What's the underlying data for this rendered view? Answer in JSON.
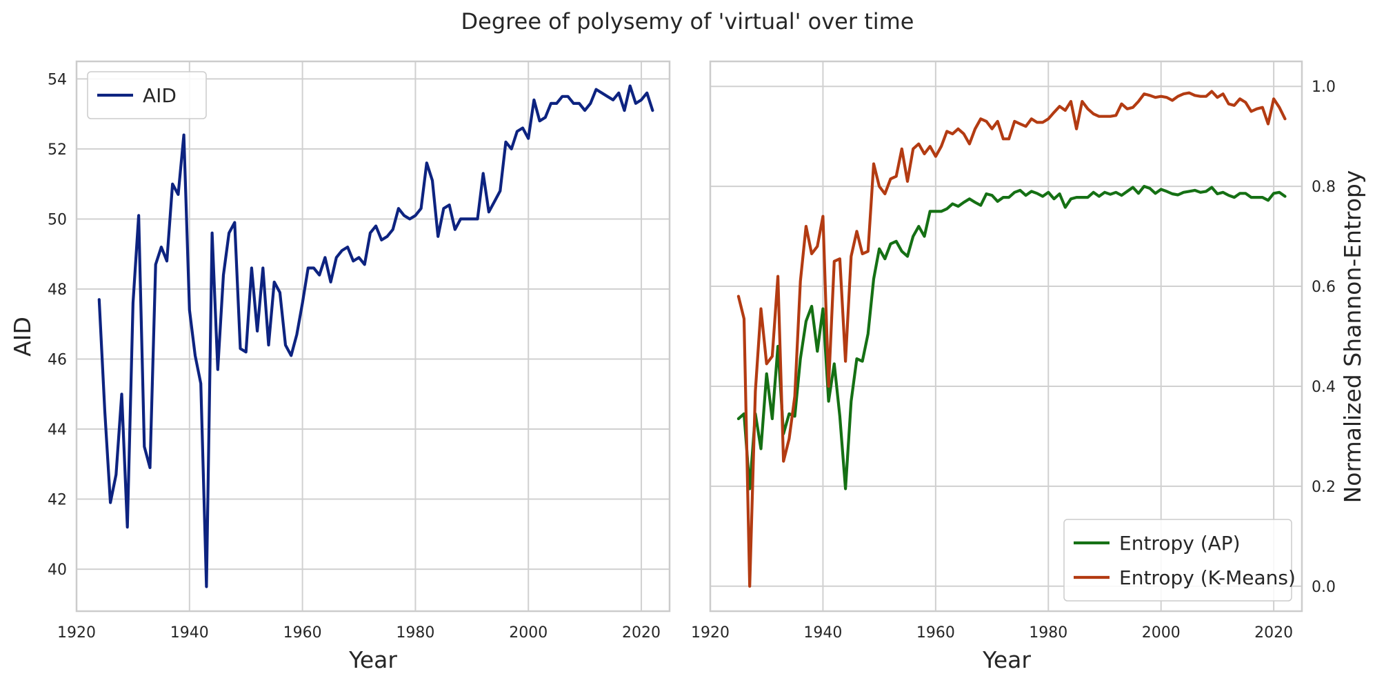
{
  "figure": {
    "title": "Degree of polysemy of 'virtual' over time"
  },
  "chart_data": [
    {
      "type": "line",
      "xlabel": "Year",
      "ylabel": "AID",
      "xlim": [
        1920,
        2025
      ],
      "ylim": [
        38.8,
        54.5
      ],
      "xticks": [
        1920,
        1940,
        1960,
        1980,
        2000,
        2020
      ],
      "yticks": [
        40,
        42,
        44,
        46,
        48,
        50,
        52,
        54
      ],
      "grid": true,
      "legend": "upper left",
      "series": [
        {
          "name": "AID",
          "color": "#0d2380",
          "x": [
            1924,
            1925,
            1926,
            1927,
            1928,
            1929,
            1930,
            1931,
            1932,
            1933,
            1934,
            1935,
            1936,
            1937,
            1938,
            1939,
            1940,
            1941,
            1942,
            1943,
            1944,
            1945,
            1946,
            1947,
            1948,
            1949,
            1950,
            1951,
            1952,
            1953,
            1954,
            1955,
            1956,
            1957,
            1958,
            1959,
            1960,
            1961,
            1962,
            1963,
            1964,
            1965,
            1966,
            1967,
            1968,
            1969,
            1970,
            1971,
            1972,
            1973,
            1974,
            1975,
            1976,
            1977,
            1978,
            1979,
            1980,
            1981,
            1982,
            1983,
            1984,
            1985,
            1986,
            1987,
            1988,
            1989,
            1990,
            1991,
            1992,
            1993,
            1994,
            1995,
            1996,
            1997,
            1998,
            1999,
            2000,
            2001,
            2002,
            2003,
            2004,
            2005,
            2006,
            2007,
            2008,
            2009,
            2010,
            2011,
            2012,
            2013,
            2014,
            2015,
            2016,
            2017,
            2018,
            2019,
            2020,
            2021,
            2022
          ],
          "y": [
            47.7,
            44.5,
            41.9,
            42.7,
            45.0,
            41.2,
            47.6,
            50.1,
            43.5,
            42.9,
            48.7,
            49.2,
            48.8,
            51.0,
            50.7,
            52.4,
            47.4,
            46.1,
            45.3,
            39.5,
            49.6,
            45.7,
            48.4,
            49.6,
            49.9,
            46.3,
            46.2,
            48.6,
            46.8,
            48.6,
            46.4,
            48.2,
            47.9,
            46.4,
            46.1,
            46.7,
            47.6,
            48.6,
            48.6,
            48.4,
            48.9,
            48.2,
            48.9,
            49.1,
            49.2,
            48.8,
            48.9,
            48.7,
            49.6,
            49.8,
            49.4,
            49.5,
            49.7,
            50.3,
            50.1,
            50.0,
            50.1,
            50.3,
            51.6,
            51.1,
            49.5,
            50.3,
            50.4,
            49.7,
            50.0,
            50.0,
            50.0,
            50.0,
            51.3,
            50.2,
            50.5,
            50.8,
            52.2,
            52.0,
            52.5,
            52.6,
            52.3,
            53.4,
            52.8,
            52.9,
            53.3,
            53.3,
            53.5,
            53.5,
            53.3,
            53.3,
            53.1,
            53.3,
            53.7,
            53.6,
            53.5,
            53.4,
            53.6,
            53.1,
            53.8,
            53.3,
            53.4,
            53.6,
            53.1
          ]
        }
      ]
    },
    {
      "type": "line",
      "xlabel": "Year",
      "ylabel": "Normalized Shannon-Entropy",
      "ylabel_side": "right",
      "xlim": [
        1920,
        2025
      ],
      "ylim": [
        -0.05,
        1.05
      ],
      "xticks": [
        1920,
        1940,
        1960,
        1980,
        2000,
        2020
      ],
      "yticks": [
        0.0,
        0.2,
        0.4,
        0.6,
        0.8,
        1.0
      ],
      "grid": true,
      "legend": "lower right",
      "series": [
        {
          "name": "Entropy (AP)",
          "color": "#157014",
          "x": [
            1925,
            1926,
            1927,
            1928,
            1929,
            1930,
            1931,
            1932,
            1933,
            1934,
            1935,
            1936,
            1937,
            1938,
            1939,
            1940,
            1941,
            1942,
            1943,
            1944,
            1945,
            1946,
            1947,
            1948,
            1949,
            1950,
            1951,
            1952,
            1953,
            1954,
            1955,
            1956,
            1957,
            1958,
            1959,
            1960,
            1961,
            1962,
            1963,
            1964,
            1965,
            1966,
            1967,
            1968,
            1969,
            1970,
            1971,
            1972,
            1973,
            1974,
            1975,
            1976,
            1977,
            1978,
            1979,
            1980,
            1981,
            1982,
            1983,
            1984,
            1985,
            1986,
            1987,
            1988,
            1989,
            1990,
            1991,
            1992,
            1993,
            1994,
            1995,
            1996,
            1997,
            1998,
            1999,
            2000,
            2001,
            2002,
            2003,
            2004,
            2005,
            2006,
            2007,
            2008,
            2009,
            2010,
            2011,
            2012,
            2013,
            2014,
            2015,
            2016,
            2017,
            2018,
            2019,
            2020,
            2021,
            2022
          ],
          "y": [
            0.335,
            0.345,
            0.195,
            0.345,
            0.275,
            0.425,
            0.335,
            0.48,
            0.305,
            0.345,
            0.34,
            0.455,
            0.53,
            0.56,
            0.47,
            0.555,
            0.37,
            0.445,
            0.34,
            0.195,
            0.37,
            0.455,
            0.45,
            0.505,
            0.615,
            0.675,
            0.655,
            0.685,
            0.69,
            0.67,
            0.66,
            0.7,
            0.72,
            0.7,
            0.75,
            0.75,
            0.75,
            0.755,
            0.765,
            0.76,
            0.768,
            0.775,
            0.768,
            0.762,
            0.785,
            0.782,
            0.77,
            0.778,
            0.778,
            0.788,
            0.792,
            0.782,
            0.79,
            0.786,
            0.78,
            0.788,
            0.775,
            0.785,
            0.758,
            0.775,
            0.778,
            0.778,
            0.778,
            0.788,
            0.78,
            0.788,
            0.784,
            0.788,
            0.782,
            0.79,
            0.798,
            0.786,
            0.8,
            0.796,
            0.786,
            0.794,
            0.79,
            0.785,
            0.783,
            0.788,
            0.79,
            0.792,
            0.788,
            0.79,
            0.798,
            0.785,
            0.788,
            0.782,
            0.778,
            0.786,
            0.786,
            0.778,
            0.778,
            0.778,
            0.772,
            0.786,
            0.788,
            0.78
          ]
        },
        {
          "name": "Entropy (K-Means)",
          "color": "#b33b12",
          "x": [
            1925,
            1926,
            1927,
            1928,
            1929,
            1930,
            1931,
            1932,
            1933,
            1934,
            1935,
            1936,
            1937,
            1938,
            1939,
            1940,
            1941,
            1942,
            1943,
            1944,
            1945,
            1946,
            1947,
            1948,
            1949,
            1950,
            1951,
            1952,
            1953,
            1954,
            1955,
            1956,
            1957,
            1958,
            1959,
            1960,
            1961,
            1962,
            1963,
            1964,
            1965,
            1966,
            1967,
            1968,
            1969,
            1970,
            1971,
            1972,
            1973,
            1974,
            1975,
            1976,
            1977,
            1978,
            1979,
            1980,
            1981,
            1982,
            1983,
            1984,
            1985,
            1986,
            1987,
            1988,
            1989,
            1990,
            1991,
            1992,
            1993,
            1994,
            1995,
            1996,
            1997,
            1998,
            1999,
            2000,
            2001,
            2002,
            2003,
            2004,
            2005,
            2006,
            2007,
            2008,
            2009,
            2010,
            2011,
            2012,
            2013,
            2014,
            2015,
            2016,
            2017,
            2018,
            2019,
            2020,
            2021,
            2022
          ],
          "y": [
            0.58,
            0.535,
            0.0,
            0.39,
            0.555,
            0.445,
            0.46,
            0.62,
            0.25,
            0.295,
            0.38,
            0.61,
            0.72,
            0.665,
            0.68,
            0.74,
            0.4,
            0.65,
            0.655,
            0.45,
            0.66,
            0.71,
            0.665,
            0.67,
            0.845,
            0.8,
            0.785,
            0.815,
            0.82,
            0.875,
            0.81,
            0.875,
            0.885,
            0.865,
            0.88,
            0.86,
            0.88,
            0.91,
            0.905,
            0.915,
            0.905,
            0.885,
            0.915,
            0.935,
            0.93,
            0.915,
            0.93,
            0.895,
            0.895,
            0.93,
            0.925,
            0.92,
            0.935,
            0.928,
            0.928,
            0.935,
            0.948,
            0.96,
            0.952,
            0.97,
            0.915,
            0.97,
            0.955,
            0.945,
            0.94,
            0.94,
            0.94,
            0.942,
            0.965,
            0.955,
            0.958,
            0.97,
            0.985,
            0.982,
            0.978,
            0.98,
            0.978,
            0.972,
            0.98,
            0.985,
            0.987,
            0.982,
            0.98,
            0.98,
            0.99,
            0.978,
            0.985,
            0.965,
            0.962,
            0.975,
            0.968,
            0.95,
            0.955,
            0.958,
            0.925,
            0.975,
            0.958,
            0.935
          ]
        }
      ]
    }
  ]
}
